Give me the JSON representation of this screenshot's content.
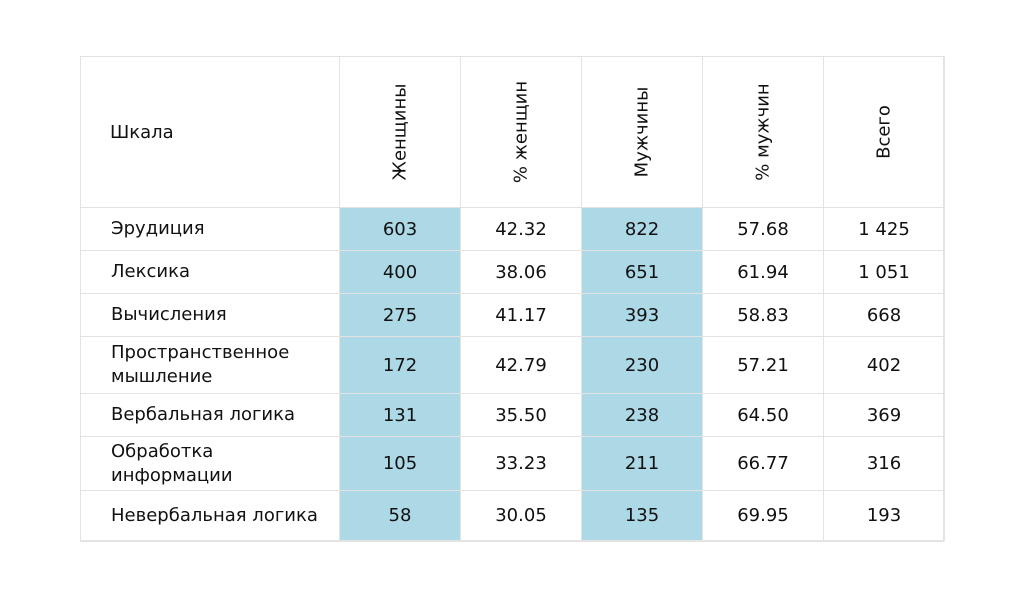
{
  "chart_data": {
    "type": "table",
    "columns": [
      "Шкала",
      "Женщины",
      "% женщин",
      "Мужчины",
      "% мужчин",
      "Всего"
    ],
    "highlight_color": "#add8e6",
    "highlighted_columns": [
      "Женщины",
      "Мужчины"
    ],
    "rows": [
      {
        "scale": "Эрудиция",
        "women": "603",
        "women_pct": "42.32",
        "men": "822",
        "men_pct": "57.68",
        "total": "1 425"
      },
      {
        "scale": "Лексика",
        "women": "400",
        "women_pct": "38.06",
        "men": "651",
        "men_pct": "61.94",
        "total": "1 051"
      },
      {
        "scale": "Вычисления",
        "women": "275",
        "women_pct": "41.17",
        "men": "393",
        "men_pct": "58.83",
        "total": "668"
      },
      {
        "scale": "Пространственное мышление",
        "women": "172",
        "women_pct": "42.79",
        "men": "230",
        "men_pct": "57.21",
        "total": "402"
      },
      {
        "scale": "Вербальная логика",
        "women": "131",
        "women_pct": "35.50",
        "men": "238",
        "men_pct": "64.50",
        "total": "369"
      },
      {
        "scale": "Обработка информации",
        "women": "105",
        "women_pct": "33.23",
        "men": "211",
        "men_pct": "66.77",
        "total": "316"
      },
      {
        "scale": "Невербальная логика",
        "women": "58",
        "women_pct": "30.05",
        "men": "135",
        "men_pct": "69.95",
        "total": "193"
      }
    ]
  }
}
